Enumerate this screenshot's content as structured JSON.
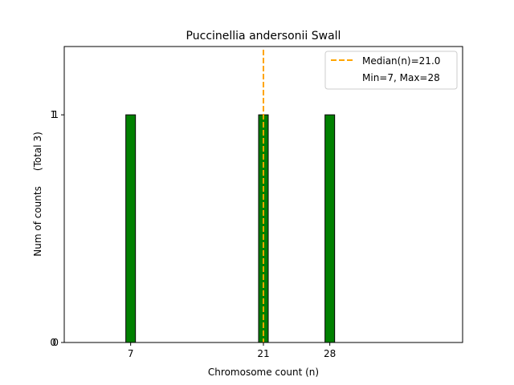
{
  "chart_data": {
    "type": "bar",
    "title": "Puccinellia andersonii Swall",
    "xlabel": "Chromosome count (n)",
    "ylabel": "Num of counts     (Total 3)",
    "x": [
      7,
      21,
      28
    ],
    "values": [
      1,
      1,
      1
    ],
    "xticks": [
      "7",
      "21",
      "28"
    ],
    "yticks": [
      "0",
      "1"
    ],
    "xlim": [
      0,
      42
    ],
    "ylim": [
      0,
      1.3
    ],
    "bar_color": "#008000",
    "median": {
      "value": 21.0,
      "label": "Median(n)=21.0",
      "color": "#ffa500"
    },
    "legend": {
      "position": "top-right",
      "entries": [
        "Median(n)=21.0",
        "Min=7, Max=28"
      ]
    },
    "grid": false
  }
}
